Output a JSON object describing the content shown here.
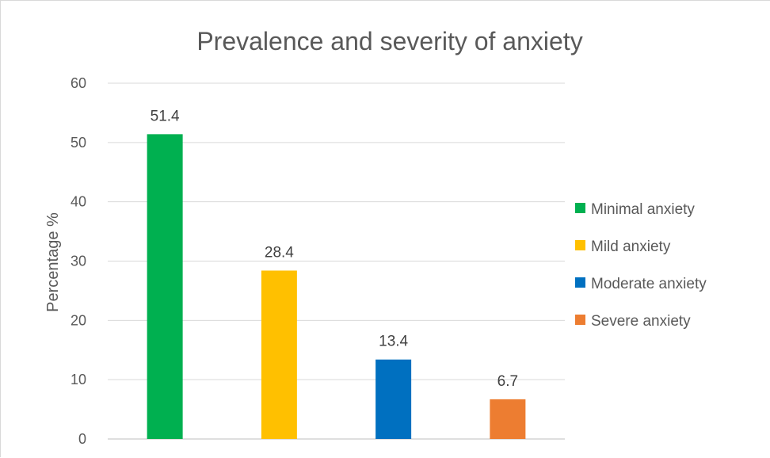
{
  "chart_data": {
    "type": "bar",
    "title": "Prevalence and severity of anxiety",
    "xlabel": "",
    "ylabel": "Percentage %",
    "ylim": [
      0,
      60
    ],
    "yticks": [
      0,
      10,
      20,
      30,
      40,
      50,
      60
    ],
    "grid": true,
    "legend_position": "right",
    "categories": [
      "Minimal anxiety",
      "Mild anxiety",
      "Moderate anxiety",
      "Severe anxiety"
    ],
    "values": [
      51.4,
      28.4,
      13.4,
      6.7
    ],
    "data_labels": [
      "51.4",
      "28.4",
      "13.4",
      "6.7"
    ],
    "colors": [
      "#00b050",
      "#ffc000",
      "#0070c0",
      "#ed7d31"
    ],
    "legend": [
      "Minimal anxiety",
      "Mild anxiety",
      "Moderate anxiety",
      "Severe anxiety"
    ]
  }
}
